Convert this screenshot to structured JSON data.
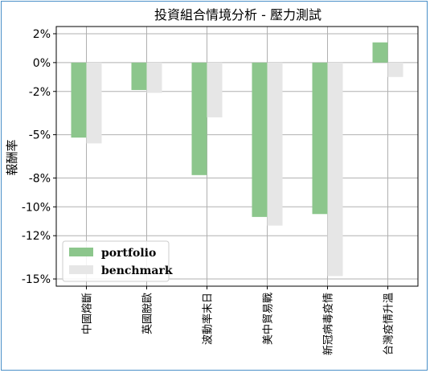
{
  "chart_data": {
    "type": "bar",
    "title": "投資組合情境分析 - 壓力測試",
    "xlabel": "",
    "ylabel": "報酬率",
    "categories": [
      "中國熔斷",
      "英國脫歐",
      "波動率末日",
      "美中貿易戰",
      "新冠病毒疫情",
      "台灣疫情升溫"
    ],
    "series": [
      {
        "name": "portfolio",
        "color": "#8cc68c",
        "values": [
          -5.2,
          -1.9,
          -7.8,
          -10.7,
          -10.5,
          1.4
        ]
      },
      {
        "name": "benchmark",
        "color": "#e6e6e6",
        "values": [
          -5.6,
          -2.1,
          -3.8,
          -11.3,
          -14.8,
          -1.0
        ]
      }
    ],
    "ylim": [
      -15.5,
      2.5
    ],
    "yticks": [
      2,
      0,
      -2,
      -5,
      -8,
      -10,
      -12,
      -15
    ],
    "ytick_labels": [
      "2%",
      "0%",
      "-2%",
      "-5%",
      "-8%",
      "-10%",
      "-12%",
      "-15%"
    ],
    "grid": true,
    "legend_position": "bottom-left"
  }
}
